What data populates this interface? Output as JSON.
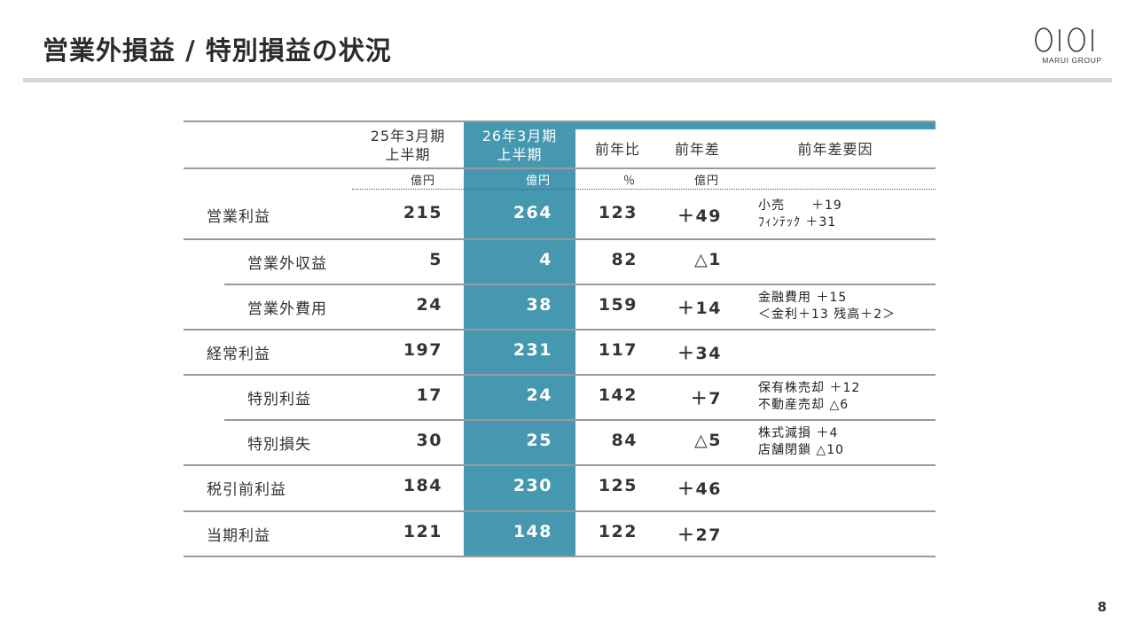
{
  "title": "営業外損益 / 特別損益の状況",
  "logo": {
    "sub": "MARUI GROUP"
  },
  "page_number": "8",
  "table": {
    "headers": {
      "prev_line1": "25年3月期",
      "prev_line2": "上半期",
      "curr_line1": "26年3月期",
      "curr_line2": "上半期",
      "yoy_ratio": "前年比",
      "yoy_diff": "前年差",
      "factors": "前年差要因"
    },
    "units": {
      "prev": "億円",
      "curr": "億円",
      "ratio": "％",
      "diff": "億円"
    },
    "rows": [
      {
        "label": "営業利益",
        "prev": "215",
        "curr": "264",
        "ratio": "123",
        "diff": "＋49",
        "factor1": "小売　　＋19",
        "factor2": "ﾌｨﾝﾃｯｸ ＋31"
      },
      {
        "label": "営業外収益",
        "prev": "5",
        "curr": "4",
        "ratio": "82",
        "diff": "△1",
        "factor1": "",
        "factor2": ""
      },
      {
        "label": "営業外費用",
        "prev": "24",
        "curr": "38",
        "ratio": "159",
        "diff": "＋14",
        "factor1": "金融費用 ＋15",
        "factor2": "＜金利＋13 残高＋2＞"
      },
      {
        "label": "経常利益",
        "prev": "197",
        "curr": "231",
        "ratio": "117",
        "diff": "＋34",
        "factor1": "",
        "factor2": ""
      },
      {
        "label": "特別利益",
        "prev": "17",
        "curr": "24",
        "ratio": "142",
        "diff": "＋7",
        "factor1": "保有株売却 ＋12",
        "factor2": "不動産売却 △6"
      },
      {
        "label": "特別損失",
        "prev": "30",
        "curr": "25",
        "ratio": "84",
        "diff": "△5",
        "factor1": "株式減損 ＋4",
        "factor2": "店舗閉鎖 △10"
      },
      {
        "label": "税引前利益",
        "prev": "184",
        "curr": "230",
        "ratio": "125",
        "diff": "＋46",
        "factor1": "",
        "factor2": ""
      },
      {
        "label": "当期利益",
        "prev": "121",
        "curr": "148",
        "ratio": "122",
        "diff": "＋27",
        "factor1": "",
        "factor2": ""
      }
    ]
  }
}
